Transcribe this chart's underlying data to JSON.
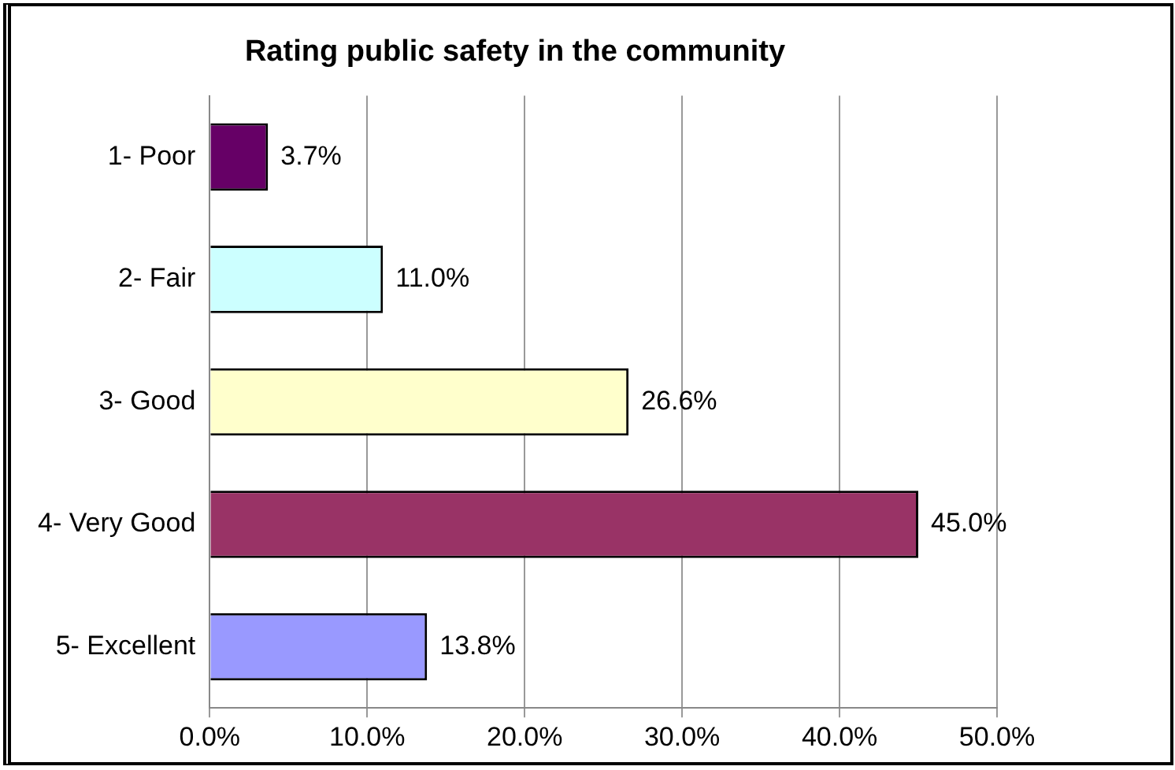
{
  "chart_data": {
    "type": "bar",
    "orientation": "horizontal",
    "title": "Rating public safety in the community",
    "categories": [
      "1- Poor",
      "2- Fair",
      "3- Good",
      "4- Very Good",
      "5- Excellent"
    ],
    "values": [
      3.7,
      11.0,
      26.6,
      45.0,
      13.8
    ],
    "colors": [
      "#660066",
      "#ccffff",
      "#ffffcc",
      "#993366",
      "#9999ff"
    ],
    "value_labels": [
      "3.7%",
      "11.0%",
      "26.6%",
      "45.0%",
      "13.8%"
    ],
    "xlim": [
      0,
      50
    ],
    "xticks": [
      {
        "value": 0,
        "label": "0.0%"
      },
      {
        "value": 10,
        "label": "10.0%"
      },
      {
        "value": 20,
        "label": "20.0%"
      },
      {
        "value": 30,
        "label": "30.0%"
      },
      {
        "value": 40,
        "label": "40.0%"
      },
      {
        "value": 50,
        "label": "50.0%"
      }
    ],
    "grid": "x",
    "legend": false
  }
}
